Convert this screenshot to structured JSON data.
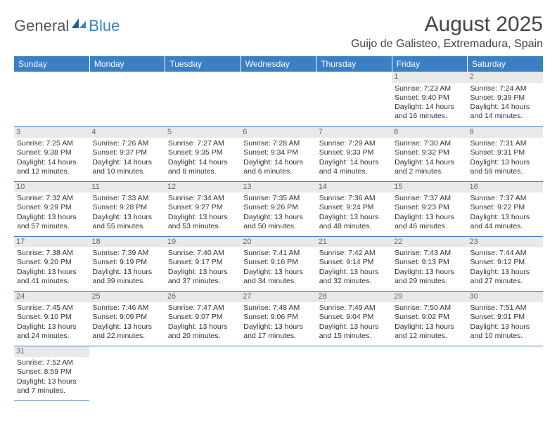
{
  "logo": {
    "general": "General",
    "blue": "Blue"
  },
  "title": "August 2025",
  "location": "Guijo de Galisteo, Extremadura, Spain",
  "dow": [
    "Sunday",
    "Monday",
    "Tuesday",
    "Wednesday",
    "Thursday",
    "Friday",
    "Saturday"
  ],
  "colors": {
    "header_bg": "#3b7fc4",
    "header_text": "#ffffff",
    "daynum_bg": "#e9e9e9",
    "cell_border": "#3b7fc4",
    "text": "#333333"
  },
  "weeks": [
    [
      null,
      null,
      null,
      null,
      null,
      {
        "n": "1",
        "sr": "Sunrise: 7:23 AM",
        "ss": "Sunset: 9:40 PM",
        "dl": "Daylight: 14 hours and 16 minutes."
      },
      {
        "n": "2",
        "sr": "Sunrise: 7:24 AM",
        "ss": "Sunset: 9:39 PM",
        "dl": "Daylight: 14 hours and 14 minutes."
      }
    ],
    [
      {
        "n": "3",
        "sr": "Sunrise: 7:25 AM",
        "ss": "Sunset: 9:38 PM",
        "dl": "Daylight: 14 hours and 12 minutes."
      },
      {
        "n": "4",
        "sr": "Sunrise: 7:26 AM",
        "ss": "Sunset: 9:37 PM",
        "dl": "Daylight: 14 hours and 10 minutes."
      },
      {
        "n": "5",
        "sr": "Sunrise: 7:27 AM",
        "ss": "Sunset: 9:35 PM",
        "dl": "Daylight: 14 hours and 8 minutes."
      },
      {
        "n": "6",
        "sr": "Sunrise: 7:28 AM",
        "ss": "Sunset: 9:34 PM",
        "dl": "Daylight: 14 hours and 6 minutes."
      },
      {
        "n": "7",
        "sr": "Sunrise: 7:29 AM",
        "ss": "Sunset: 9:33 PM",
        "dl": "Daylight: 14 hours and 4 minutes."
      },
      {
        "n": "8",
        "sr": "Sunrise: 7:30 AM",
        "ss": "Sunset: 9:32 PM",
        "dl": "Daylight: 14 hours and 2 minutes."
      },
      {
        "n": "9",
        "sr": "Sunrise: 7:31 AM",
        "ss": "Sunset: 9:31 PM",
        "dl": "Daylight: 13 hours and 59 minutes."
      }
    ],
    [
      {
        "n": "10",
        "sr": "Sunrise: 7:32 AM",
        "ss": "Sunset: 9:29 PM",
        "dl": "Daylight: 13 hours and 57 minutes."
      },
      {
        "n": "11",
        "sr": "Sunrise: 7:33 AM",
        "ss": "Sunset: 9:28 PM",
        "dl": "Daylight: 13 hours and 55 minutes."
      },
      {
        "n": "12",
        "sr": "Sunrise: 7:34 AM",
        "ss": "Sunset: 9:27 PM",
        "dl": "Daylight: 13 hours and 53 minutes."
      },
      {
        "n": "13",
        "sr": "Sunrise: 7:35 AM",
        "ss": "Sunset: 9:26 PM",
        "dl": "Daylight: 13 hours and 50 minutes."
      },
      {
        "n": "14",
        "sr": "Sunrise: 7:36 AM",
        "ss": "Sunset: 9:24 PM",
        "dl": "Daylight: 13 hours and 48 minutes."
      },
      {
        "n": "15",
        "sr": "Sunrise: 7:37 AM",
        "ss": "Sunset: 9:23 PM",
        "dl": "Daylight: 13 hours and 46 minutes."
      },
      {
        "n": "16",
        "sr": "Sunrise: 7:37 AM",
        "ss": "Sunset: 9:22 PM",
        "dl": "Daylight: 13 hours and 44 minutes."
      }
    ],
    [
      {
        "n": "17",
        "sr": "Sunrise: 7:38 AM",
        "ss": "Sunset: 9:20 PM",
        "dl": "Daylight: 13 hours and 41 minutes."
      },
      {
        "n": "18",
        "sr": "Sunrise: 7:39 AM",
        "ss": "Sunset: 9:19 PM",
        "dl": "Daylight: 13 hours and 39 minutes."
      },
      {
        "n": "19",
        "sr": "Sunrise: 7:40 AM",
        "ss": "Sunset: 9:17 PM",
        "dl": "Daylight: 13 hours and 37 minutes."
      },
      {
        "n": "20",
        "sr": "Sunrise: 7:41 AM",
        "ss": "Sunset: 9:16 PM",
        "dl": "Daylight: 13 hours and 34 minutes."
      },
      {
        "n": "21",
        "sr": "Sunrise: 7:42 AM",
        "ss": "Sunset: 9:14 PM",
        "dl": "Daylight: 13 hours and 32 minutes."
      },
      {
        "n": "22",
        "sr": "Sunrise: 7:43 AM",
        "ss": "Sunset: 9:13 PM",
        "dl": "Daylight: 13 hours and 29 minutes."
      },
      {
        "n": "23",
        "sr": "Sunrise: 7:44 AM",
        "ss": "Sunset: 9:12 PM",
        "dl": "Daylight: 13 hours and 27 minutes."
      }
    ],
    [
      {
        "n": "24",
        "sr": "Sunrise: 7:45 AM",
        "ss": "Sunset: 9:10 PM",
        "dl": "Daylight: 13 hours and 24 minutes."
      },
      {
        "n": "25",
        "sr": "Sunrise: 7:46 AM",
        "ss": "Sunset: 9:09 PM",
        "dl": "Daylight: 13 hours and 22 minutes."
      },
      {
        "n": "26",
        "sr": "Sunrise: 7:47 AM",
        "ss": "Sunset: 9:07 PM",
        "dl": "Daylight: 13 hours and 20 minutes."
      },
      {
        "n": "27",
        "sr": "Sunrise: 7:48 AM",
        "ss": "Sunset: 9:06 PM",
        "dl": "Daylight: 13 hours and 17 minutes."
      },
      {
        "n": "28",
        "sr": "Sunrise: 7:49 AM",
        "ss": "Sunset: 9:04 PM",
        "dl": "Daylight: 13 hours and 15 minutes."
      },
      {
        "n": "29",
        "sr": "Sunrise: 7:50 AM",
        "ss": "Sunset: 9:02 PM",
        "dl": "Daylight: 13 hours and 12 minutes."
      },
      {
        "n": "30",
        "sr": "Sunrise: 7:51 AM",
        "ss": "Sunset: 9:01 PM",
        "dl": "Daylight: 13 hours and 10 minutes."
      }
    ],
    [
      {
        "n": "31",
        "sr": "Sunrise: 7:52 AM",
        "ss": "Sunset: 8:59 PM",
        "dl": "Daylight: 13 hours and 7 minutes."
      },
      null,
      null,
      null,
      null,
      null,
      null
    ]
  ]
}
